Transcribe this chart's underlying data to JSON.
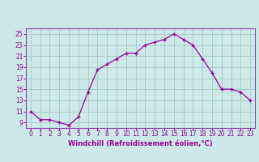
{
  "x": [
    0,
    1,
    2,
    3,
    4,
    5,
    6,
    7,
    8,
    9,
    10,
    11,
    12,
    13,
    14,
    15,
    16,
    17,
    18,
    19,
    20,
    21,
    22,
    23
  ],
  "y": [
    11,
    9.5,
    9.5,
    9,
    8.5,
    10,
    14.5,
    18.5,
    19.5,
    20.5,
    21.5,
    21.5,
    23,
    23.5,
    24,
    25,
    24,
    23,
    20.5,
    18,
    15,
    15,
    14.5,
    13
  ],
  "line_color": "#990099",
  "marker": "+",
  "bg_color": "#cce8e8",
  "grid_color": "#aacccc",
  "xlabel": "Windchill (Refroidissement éolien,°C)",
  "xlabel_color": "#990099",
  "tick_color": "#990099",
  "spine_color": "#8844aa",
  "ylim": [
    8.0,
    26.0
  ],
  "yticks": [
    9,
    11,
    13,
    15,
    17,
    19,
    21,
    23,
    25
  ],
  "xlim": [
    -0.5,
    23.5
  ],
  "xticks": [
    0,
    1,
    2,
    3,
    4,
    5,
    6,
    7,
    8,
    9,
    10,
    11,
    12,
    13,
    14,
    15,
    16,
    17,
    18,
    19,
    20,
    21,
    22,
    23
  ]
}
